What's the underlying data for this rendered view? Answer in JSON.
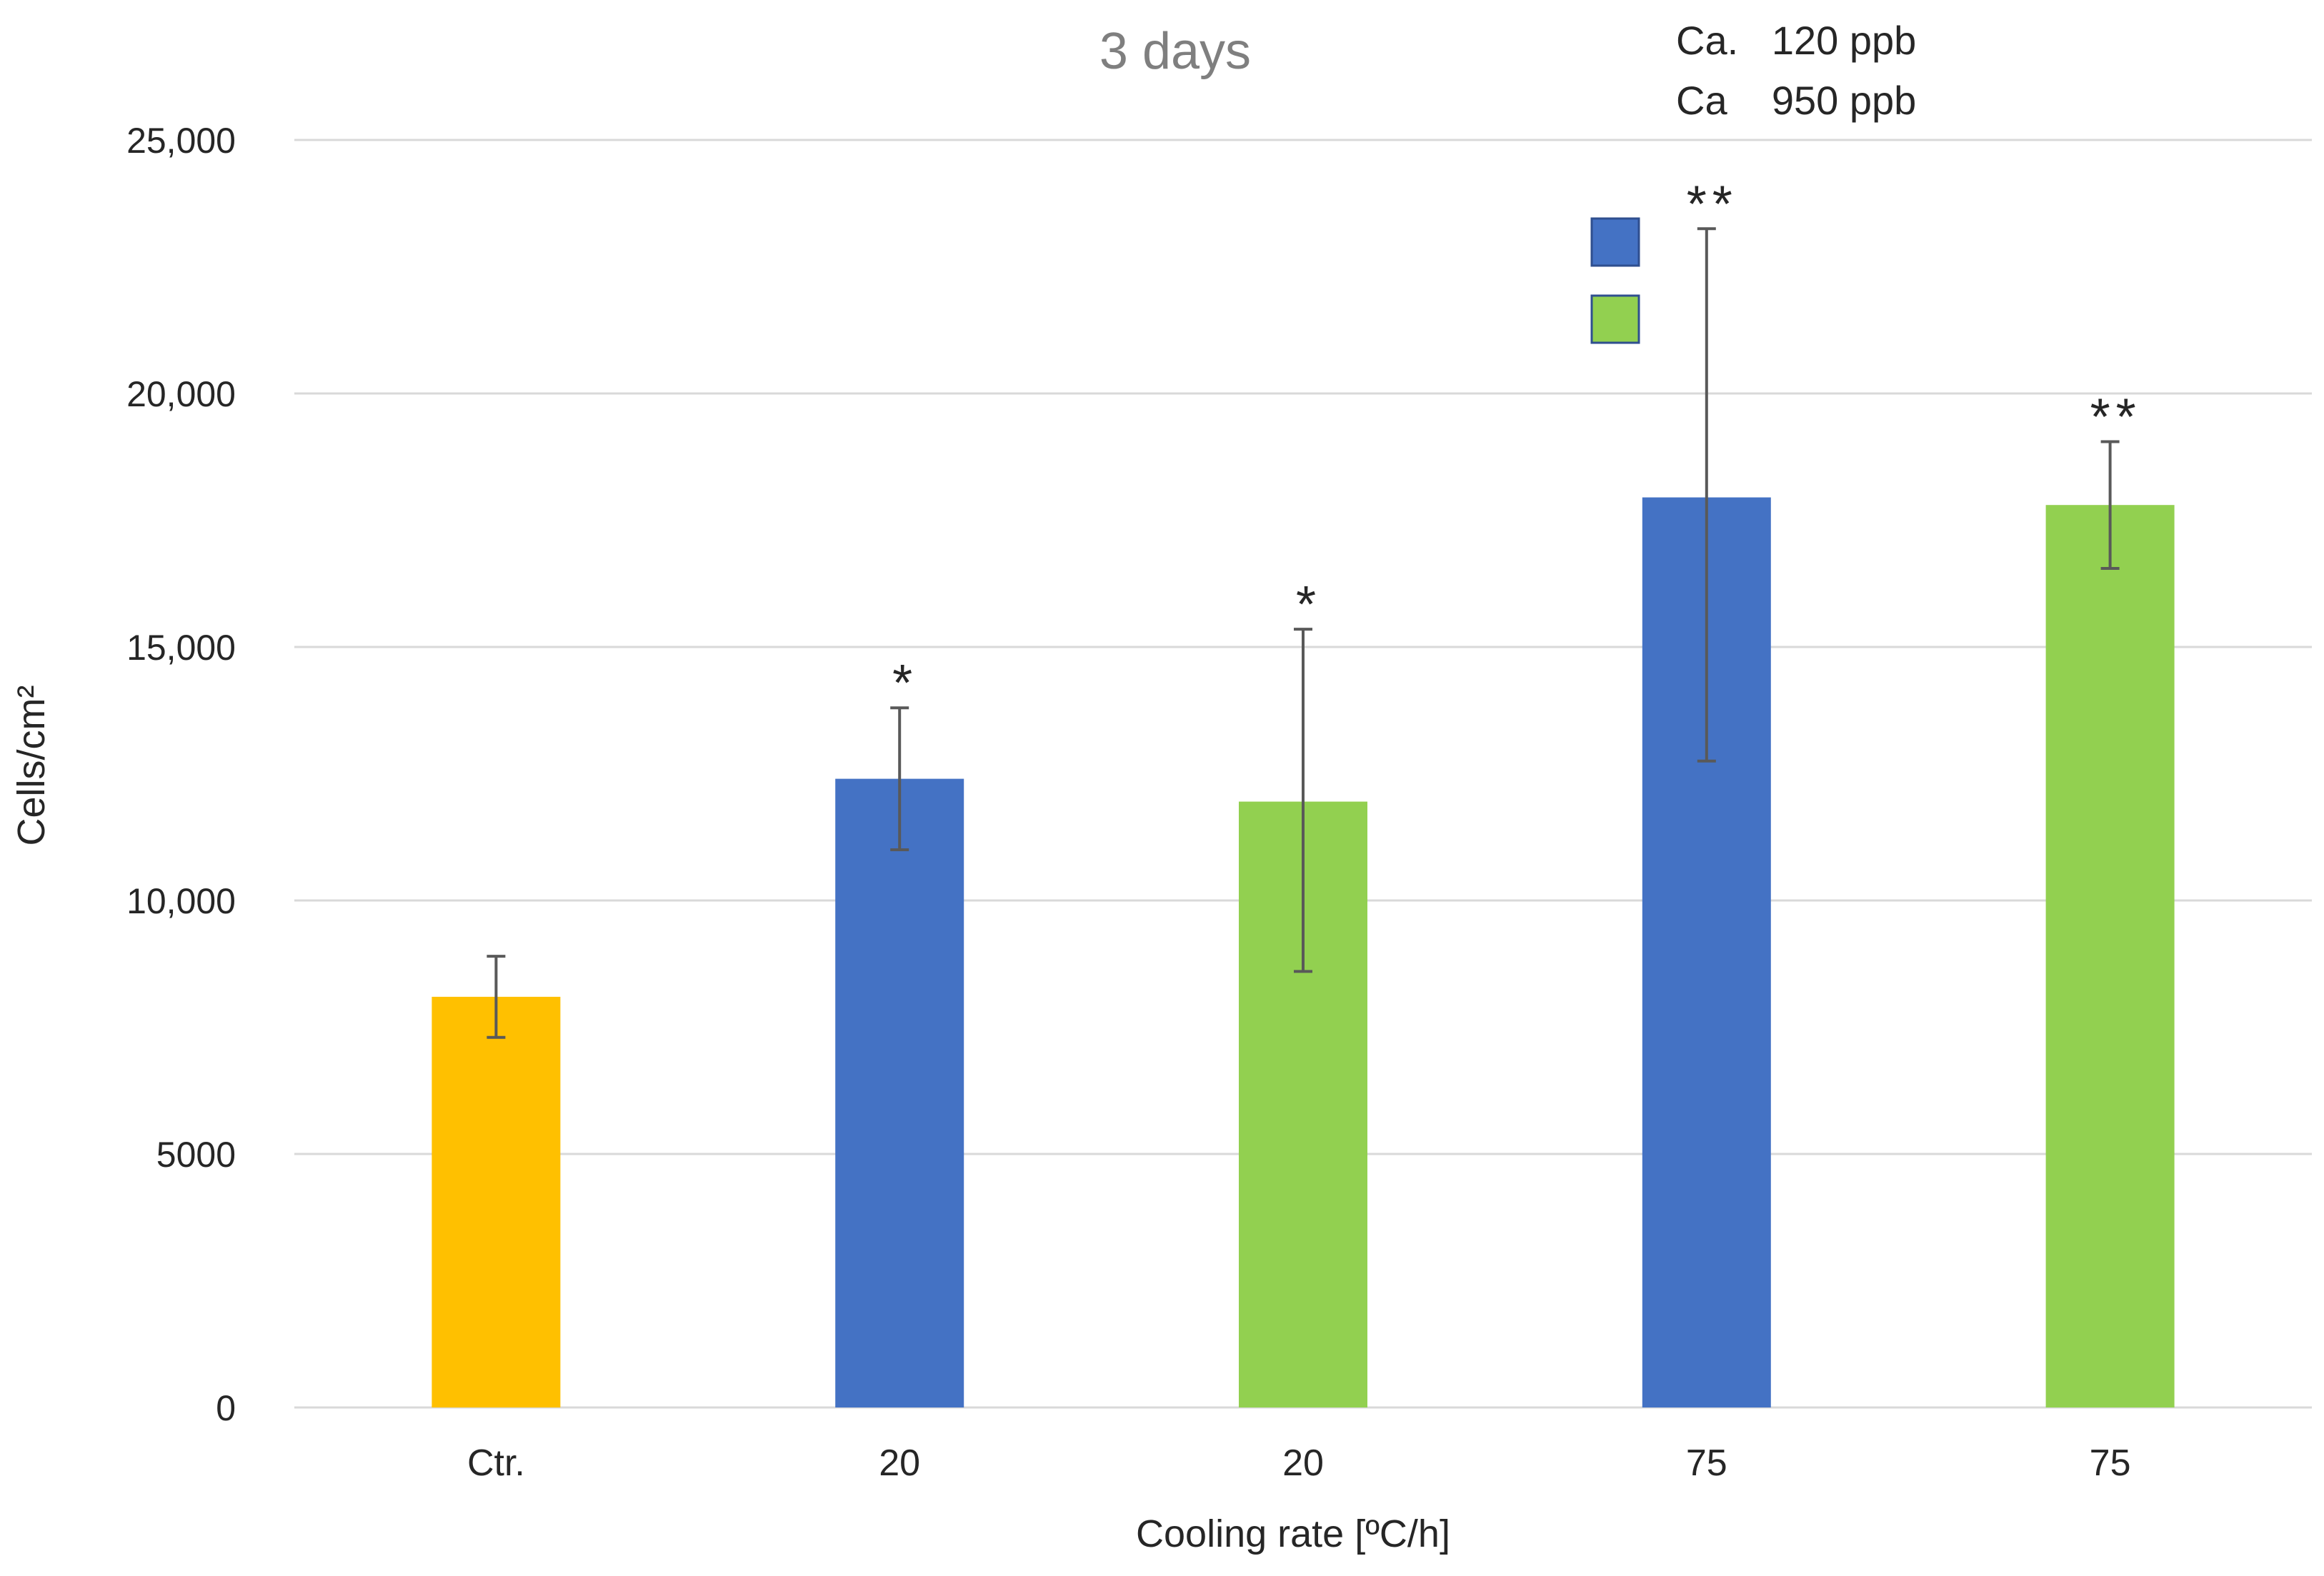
{
  "chart_data": {
    "type": "bar",
    "title": "3 days",
    "xlabel": "Cooling rate [ºC/h]",
    "ylabel": "Cells/cm²",
    "ylim": [
      0,
      25000
    ],
    "y_ticks": [
      0,
      5000,
      10000,
      15000,
      20000,
      25000
    ],
    "y_tick_labels": [
      "0",
      "5000",
      "10,000",
      "15,000",
      "20,000",
      "25,000"
    ],
    "grid": true,
    "categories": [
      "Ctr.",
      "20",
      "20",
      "75",
      "75"
    ],
    "values": [
      8100,
      12400,
      11950,
      17950,
      17800
    ],
    "error_low": [
      7300,
      11000,
      8600,
      12750,
      16550
    ],
    "error_high": [
      8900,
      13800,
      15350,
      23250,
      19050
    ],
    "significance": [
      "",
      "*",
      "*",
      "**",
      "**"
    ],
    "bar_colors": [
      "#FFC000",
      "#4472C4",
      "#92D050",
      "#4472C4",
      "#92D050"
    ],
    "legend": {
      "position": "top-right",
      "entries": [
        {
          "label": "Ca.   120 ppb",
          "color": "#4472C4"
        },
        {
          "label": "Ca    950 ppb",
          "color": "#92D050"
        }
      ]
    }
  }
}
